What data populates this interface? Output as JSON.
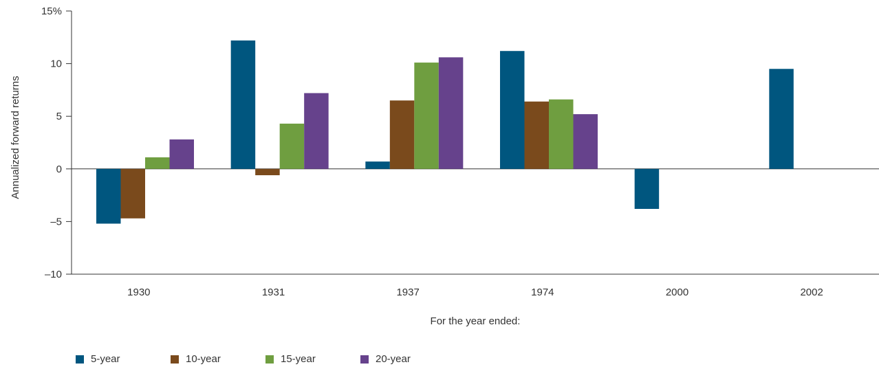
{
  "chart_data": {
    "type": "bar",
    "xlabel": "For the year ended:",
    "ylabel": "Annualized forward returns",
    "categories": [
      "1930",
      "1931",
      "1937",
      "1974",
      "2000",
      "2002"
    ],
    "ylim": [
      -10,
      15
    ],
    "yticks": [
      {
        "value": 15,
        "label": "15%"
      },
      {
        "value": 10,
        "label": "10"
      },
      {
        "value": 5,
        "label": "5"
      },
      {
        "value": 0,
        "label": "0"
      },
      {
        "value": -5,
        "label": "–5"
      },
      {
        "value": -10,
        "label": "–10"
      }
    ],
    "series": [
      {
        "name": "5-year",
        "color": "#00567f",
        "values": [
          -5.2,
          12.2,
          0.7,
          11.2,
          -3.8,
          9.5
        ]
      },
      {
        "name": "10-year",
        "color": "#7a4a1c",
        "values": [
          -4.7,
          -0.6,
          6.5,
          6.4,
          null,
          null
        ]
      },
      {
        "name": "15-year",
        "color": "#6f9e40",
        "values": [
          1.1,
          4.3,
          10.1,
          6.6,
          null,
          null
        ]
      },
      {
        "name": "20-year",
        "color": "#66428c",
        "values": [
          2.8,
          7.2,
          10.6,
          5.2,
          null,
          null
        ]
      }
    ],
    "grid": false,
    "legend_position": "bottom-left"
  }
}
